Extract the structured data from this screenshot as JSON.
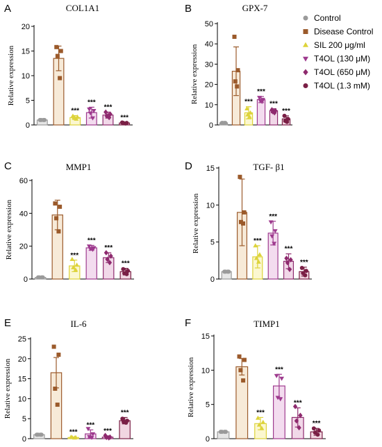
{
  "groups": [
    {
      "name": "Control",
      "color": "#9a9a9a",
      "fill": "#e6e6e6",
      "marker": "circle"
    },
    {
      "name": "Disease Control",
      "color": "#9b5a2b",
      "fill": "#f7ead8",
      "marker": "square"
    },
    {
      "name": "SIL 200 μg/ml",
      "color": "#ddd33a",
      "fill": "#fbf7d0",
      "marker": "triangle-up"
    },
    {
      "name": "T4OL (130 μM)",
      "color": "#9e3a8e",
      "fill": "#f3dcef",
      "marker": "triangle-down"
    },
    {
      "name": "T4OL (650 μM)",
      "color": "#8e2a6e",
      "fill": "#f1d8e8",
      "marker": "diamond"
    },
    {
      "name": "T4OL (1.3 mM)",
      "color": "#7a1f45",
      "fill": "#f1d6e1",
      "marker": "circle"
    }
  ],
  "significance_label": "***",
  "chart_data": [
    {
      "type": "bar",
      "letter": "A",
      "title": "COL1A1",
      "ylabel": "Relative expression",
      "ylim": [
        0,
        20
      ],
      "yticks": [
        0,
        5,
        10,
        15,
        20
      ],
      "values": [
        1.0,
        13.5,
        1.5,
        2.5,
        2.0,
        0.4
      ],
      "errors": [
        0.1,
        2.5,
        0.4,
        1.1,
        0.6,
        0.1
      ],
      "points": [
        [
          1.0,
          1.0,
          1.0,
          1.0
        ],
        [
          15.8,
          15.0,
          14.0,
          9.5
        ],
        [
          1.8,
          1.6,
          1.5,
          1.2
        ],
        [
          3.2,
          2.9,
          2.4,
          1.4
        ],
        [
          2.6,
          2.2,
          1.8,
          1.5
        ],
        [
          0.5,
          0.4,
          0.4,
          0.3
        ]
      ],
      "significant": [
        false,
        false,
        true,
        true,
        true,
        true
      ]
    },
    {
      "type": "bar",
      "letter": "B",
      "title": "GPX-7",
      "ylabel": "Relative expression",
      "ylim": [
        0,
        50
      ],
      "yticks": [
        0,
        10,
        20,
        30,
        40,
        50
      ],
      "values": [
        1.0,
        26.5,
        6.0,
        12.5,
        7.0,
        3.0
      ],
      "errors": [
        0.1,
        12.0,
        3.0,
        1.5,
        1.0,
        1.5
      ],
      "points": [
        [
          1.0,
          1.0,
          1.0,
          1.0
        ],
        [
          43.5,
          27.0,
          21.5,
          19.0
        ],
        [
          8.0,
          6.0,
          5.0,
          4.0
        ],
        [
          13.5,
          12.5,
          12.0,
          11.5
        ],
        [
          7.5,
          7.0,
          6.5,
          6.0
        ],
        [
          4.5,
          3.0,
          2.0,
          1.5
        ]
      ],
      "significant": [
        false,
        false,
        true,
        true,
        true,
        true
      ]
    },
    {
      "type": "bar",
      "letter": "C",
      "title": "MMP1",
      "ylabel": "Relative expression",
      "ylim": [
        0,
        60
      ],
      "yticks": [
        0,
        20,
        40,
        60
      ],
      "values": [
        1.0,
        39.0,
        8.0,
        19.0,
        13.0,
        4.5
      ],
      "errors": [
        0.1,
        9.0,
        3.5,
        1.5,
        3.0,
        2.0
      ],
      "points": [
        [
          1.0,
          1.0,
          1.0,
          1.0
        ],
        [
          46.0,
          44.0,
          37.0,
          29.0
        ],
        [
          12.0,
          8.5,
          7.0,
          5.5
        ],
        [
          20.0,
          19.0,
          18.5,
          18.0
        ],
        [
          16.0,
          14.0,
          12.0,
          10.0
        ],
        [
          6.0,
          5.0,
          3.5,
          3.0
        ]
      ],
      "significant": [
        false,
        false,
        true,
        true,
        true,
        true
      ]
    },
    {
      "type": "bar",
      "letter": "D",
      "title": "TGF- β1",
      "ylabel": "Relative expression",
      "ylim": [
        0,
        15
      ],
      "yticks": [
        0,
        5,
        10,
        15
      ],
      "values": [
        1.0,
        9.0,
        3.0,
        6.2,
        2.4,
        1.0
      ],
      "errors": [
        0.1,
        4.5,
        1.5,
        1.6,
        1.0,
        0.6
      ],
      "points": [
        [
          1.0,
          1.0,
          1.0,
          1.0
        ],
        [
          13.8,
          9.0,
          7.7,
          7.5
        ],
        [
          4.5,
          3.3,
          2.8,
          2.3
        ],
        [
          7.7,
          6.5,
          5.8,
          4.8
        ],
        [
          2.8,
          2.6,
          2.2,
          1.3
        ],
        [
          1.5,
          1.1,
          0.8,
          0.5
        ]
      ],
      "significant": [
        false,
        false,
        true,
        true,
        true,
        true
      ]
    },
    {
      "type": "bar",
      "letter": "E",
      "title": "IL-6",
      "ylabel": "Relative expression",
      "ylim": [
        0,
        25
      ],
      "yticks": [
        0,
        5,
        10,
        15,
        20,
        25
      ],
      "values": [
        1.0,
        16.5,
        0.3,
        1.2,
        0.4,
        4.5
      ],
      "errors": [
        0.1,
        3.8,
        0.1,
        1.0,
        0.3,
        0.8
      ],
      "points": [
        [
          1.0,
          1.0,
          1.0,
          1.0
        ],
        [
          23.0,
          21.0,
          12.5,
          8.5
        ],
        [
          0.4,
          0.3,
          0.3,
          0.2
        ],
        [
          2.5,
          1.2,
          0.5,
          0.3
        ],
        [
          0.8,
          0.4,
          0.3,
          0.2
        ],
        [
          5.0,
          4.5,
          4.2,
          4.0
        ]
      ],
      "significant": [
        false,
        false,
        true,
        true,
        true,
        true
      ]
    },
    {
      "type": "bar",
      "letter": "F",
      "title": "TIMP1",
      "ylabel": "Relative expression",
      "ylim": [
        0,
        15
      ],
      "yticks": [
        0,
        5,
        10,
        15
      ],
      "values": [
        1.0,
        10.5,
        2.2,
        7.7,
        3.1,
        1.0
      ],
      "errors": [
        0.1,
        1.2,
        0.9,
        1.7,
        1.4,
        0.5
      ],
      "points": [
        [
          1.0,
          1.0,
          1.0,
          1.0
        ],
        [
          12.0,
          11.5,
          10.0,
          8.5
        ],
        [
          3.0,
          2.4,
          2.0,
          1.5
        ],
        [
          9.2,
          8.8,
          6.0,
          5.8
        ],
        [
          4.7,
          3.4,
          2.6,
          1.6
        ],
        [
          1.5,
          1.2,
          0.9,
          0.6
        ]
      ],
      "significant": [
        false,
        false,
        true,
        true,
        true,
        true
      ]
    }
  ]
}
